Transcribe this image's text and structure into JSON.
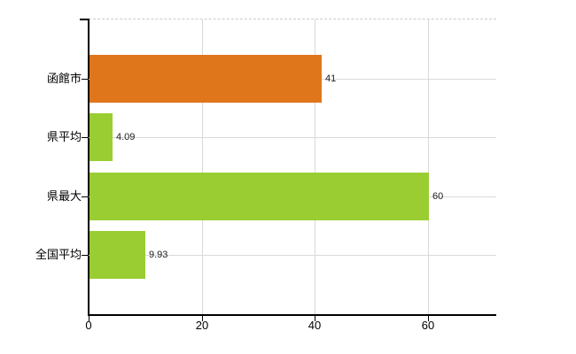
{
  "chart_data": {
    "type": "bar",
    "orientation": "horizontal",
    "title": "",
    "categories": [
      "函館市",
      "県平均",
      "県最大",
      "全国平均"
    ],
    "values": [
      41,
      4.09,
      60,
      9.93
    ],
    "value_labels": [
      "41",
      "4.09",
      "60",
      "9.93"
    ],
    "bar_colors": [
      "#e0761c",
      "#9acd32",
      "#9acd32",
      "#9acd32"
    ],
    "x_ticks": [
      0,
      20,
      40,
      60
    ],
    "x_tick_labels": [
      "0",
      "20",
      "40",
      "60"
    ],
    "xlim": [
      0,
      72.06
    ],
    "grid": true,
    "legend": "none",
    "gridlines": {
      "horizontal": "at-category-centers",
      "vertical": "at-x-ticks"
    }
  },
  "colors": {
    "bar_orange": "#e0761c",
    "bar_green": "#9acd32",
    "axis": "#000000",
    "gridline": "#d7dbd7",
    "plot_top_border": "#cfc9c9",
    "category_text": "#000000",
    "tick_text": "#000000",
    "value_text": "#1c1c1c",
    "background": "#ffffff"
  }
}
